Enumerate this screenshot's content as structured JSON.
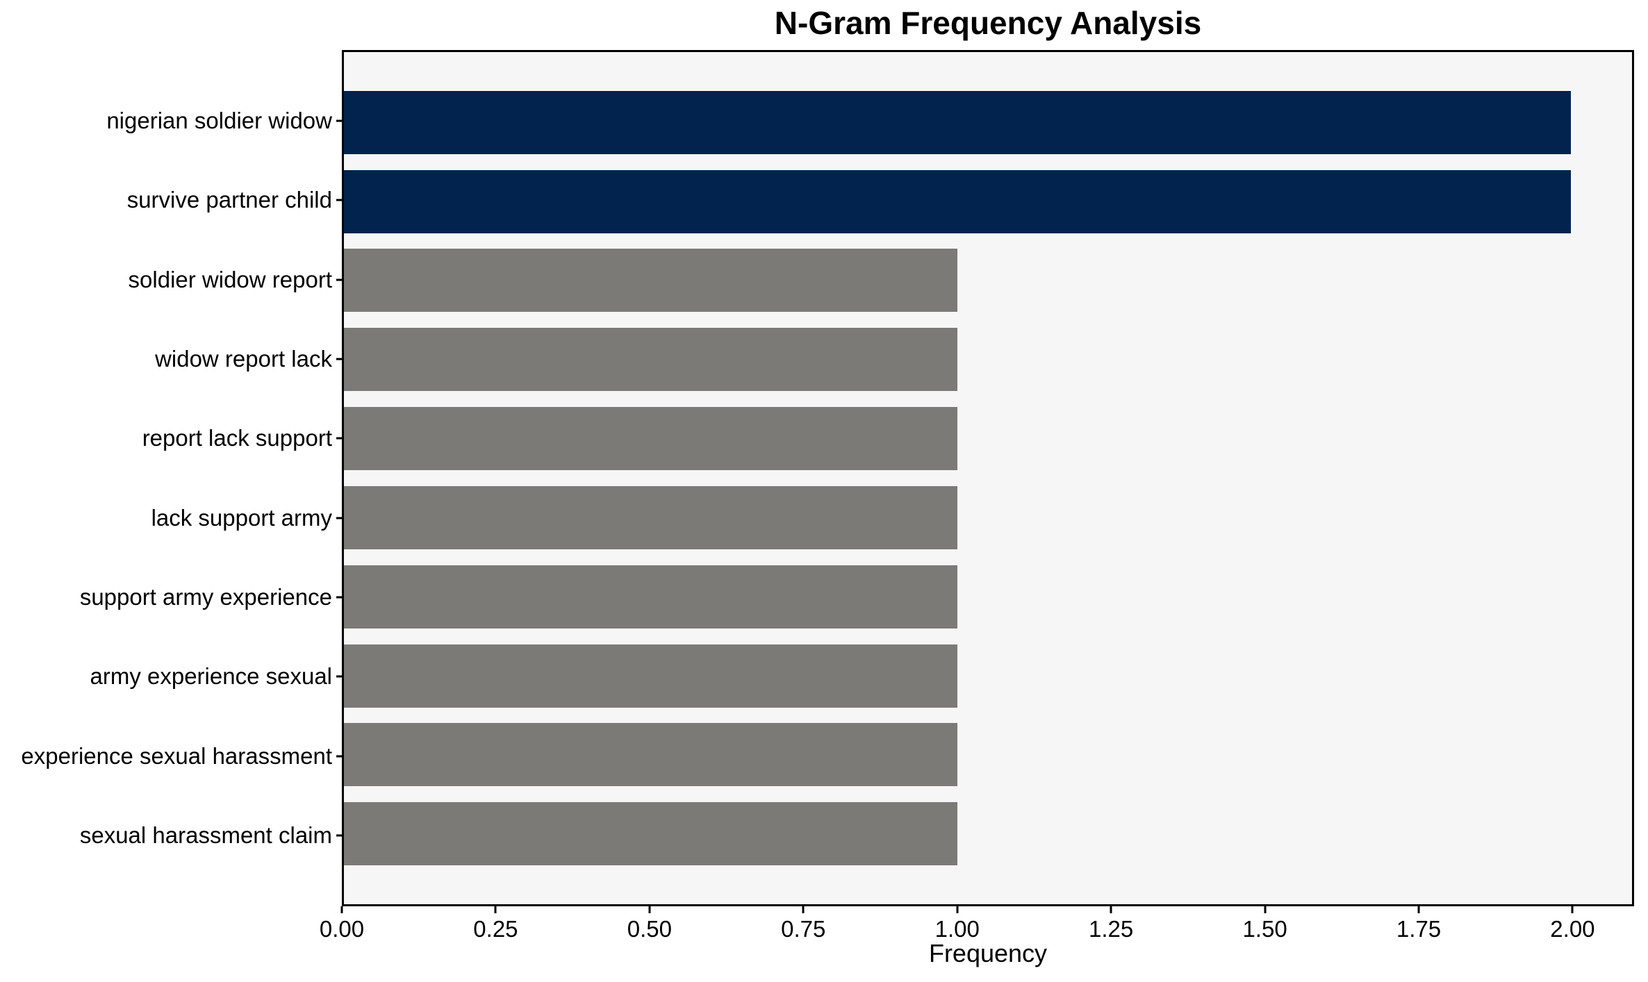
{
  "chart_data": {
    "type": "bar",
    "orientation": "horizontal",
    "title": "N-Gram Frequency Analysis",
    "xlabel": "Frequency",
    "ylabel": "",
    "categories": [
      "nigerian soldier widow",
      "survive partner child",
      "soldier widow report",
      "widow report lack",
      "report lack support",
      "lack support army",
      "support army experience",
      "army experience sexual",
      "experience sexual harassment",
      "sexual harassment claim"
    ],
    "values": [
      2,
      2,
      1,
      1,
      1,
      1,
      1,
      1,
      1,
      1
    ],
    "bar_colors": [
      "#02234e",
      "#02234e",
      "#7b7a77",
      "#7b7a77",
      "#7b7a77",
      "#7b7a77",
      "#7b7a77",
      "#7b7a77",
      "#7b7a77",
      "#7b7a77"
    ],
    "xlim": [
      0,
      2.1
    ],
    "xticks": [
      {
        "value": 0.0,
        "label": "0.00"
      },
      {
        "value": 0.25,
        "label": "0.25"
      },
      {
        "value": 0.5,
        "label": "0.50"
      },
      {
        "value": 0.75,
        "label": "0.75"
      },
      {
        "value": 1.0,
        "label": "1.00"
      },
      {
        "value": 1.25,
        "label": "1.25"
      },
      {
        "value": 1.5,
        "label": "1.50"
      },
      {
        "value": 1.75,
        "label": "1.75"
      },
      {
        "value": 2.0,
        "label": "2.00"
      }
    ],
    "grid": false,
    "legend": null,
    "colors": {
      "highlight_bar": "#02234e",
      "default_bar": "#7b7a77",
      "plot_background": "#f7f6f6",
      "spine": "#000000",
      "text": "#000000"
    }
  }
}
